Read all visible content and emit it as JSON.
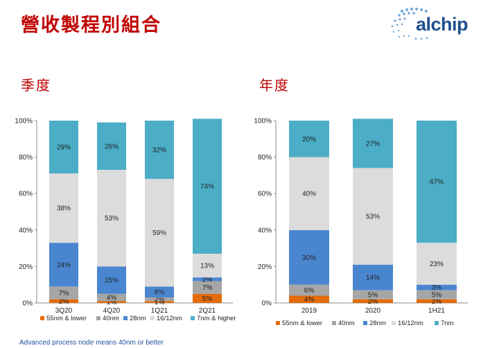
{
  "title": "營收製程別組合",
  "logo": {
    "text": "alchip"
  },
  "footnote": "Advanced process node means 40nm or better",
  "colors": {
    "55nm": "#e46c0a",
    "40nm": "#a6a6a6",
    "28nm": "#4a86d0",
    "16nm": "#dcdcdc",
    "7nm": "#4badc6"
  },
  "chart_data": [
    {
      "type": "bar",
      "stacked": true,
      "title": "季度",
      "categories": [
        "3Q20",
        "4Q20",
        "1Q21",
        "2Q21"
      ],
      "ylim": [
        0,
        100
      ],
      "yticks": [
        "0%",
        "20%",
        "40%",
        "60%",
        "80%",
        "100%"
      ],
      "legend_position": "bottom",
      "series": [
        {
          "name": "55nm & lower",
          "key": "55nm",
          "values": [
            2,
            1,
            1,
            5
          ],
          "labels": [
            "2%",
            "1%",
            "1%",
            "5%"
          ]
        },
        {
          "name": "40nm",
          "key": "40nm",
          "values": [
            7,
            4,
            2,
            7
          ],
          "labels": [
            "7%",
            "4%",
            "2%",
            "7%"
          ]
        },
        {
          "name": "28nm",
          "key": "28nm",
          "values": [
            24,
            15,
            6,
            2
          ],
          "labels": [
            "24%",
            "15%",
            "6%",
            "2%"
          ]
        },
        {
          "name": "16/12nm",
          "key": "16nm",
          "values": [
            38,
            53,
            59,
            13
          ],
          "labels": [
            "38%",
            "53%",
            "59%",
            "13%"
          ]
        },
        {
          "name": "7nm & higher",
          "key": "7nm",
          "values": [
            29,
            26,
            32,
            74
          ],
          "labels": [
            "29%",
            "26%",
            "32%",
            "74%"
          ]
        }
      ]
    },
    {
      "type": "bar",
      "stacked": true,
      "title": "年度",
      "categories": [
        "2019",
        "2020",
        "1H21"
      ],
      "ylim": [
        0,
        100
      ],
      "yticks": [
        "0%",
        "20%",
        "40%",
        "60%",
        "80%",
        "100%"
      ],
      "legend_position": "bottom",
      "series": [
        {
          "name": "55nm & lower",
          "key": "55nm",
          "values": [
            4,
            2,
            2
          ],
          "labels": [
            "4%",
            "2%",
            "2%"
          ]
        },
        {
          "name": "40nm",
          "key": "40nm",
          "values": [
            6,
            5,
            5
          ],
          "labels": [
            "6%",
            "5%",
            "5%"
          ]
        },
        {
          "name": "28nm",
          "key": "28nm",
          "values": [
            30,
            14,
            3
          ],
          "labels": [
            "30%",
            "14%",
            "3%"
          ]
        },
        {
          "name": "16/12nm",
          "key": "16nm",
          "values": [
            40,
            53,
            23
          ],
          "labels": [
            "40%",
            "53%",
            "23%"
          ]
        },
        {
          "name": "7nm",
          "key": "7nm",
          "values": [
            20,
            27,
            67
          ],
          "labels": [
            "20%",
            "27%",
            "67%"
          ]
        }
      ]
    }
  ]
}
